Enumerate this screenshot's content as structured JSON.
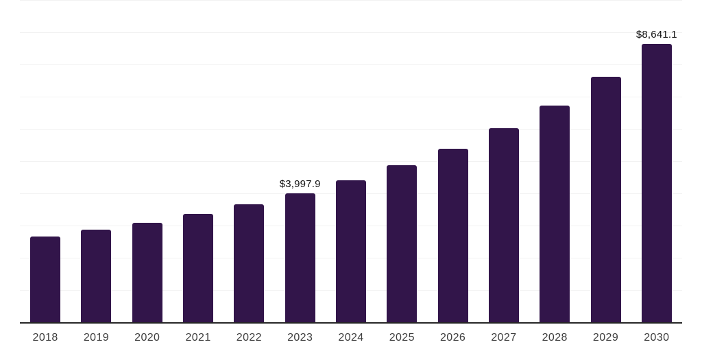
{
  "chart": {
    "background_color": "#ffffff",
    "bar_color": "#32154a",
    "gridline_color": "#f2f2f2",
    "axis_line_color": "#262626",
    "tick_label_color": "#3d3d3d",
    "data_label_color": "#111111"
  },
  "chart_data": {
    "type": "bar",
    "title": "",
    "xlabel": "",
    "ylabel": "",
    "categories": [
      "2018",
      "2019",
      "2020",
      "2021",
      "2022",
      "2023",
      "2024",
      "2025",
      "2026",
      "2027",
      "2028",
      "2029",
      "2030"
    ],
    "values": [
      2660,
      2875,
      3085,
      3360,
      3660,
      3997.9,
      4405,
      4875,
      5385,
      6020,
      6725,
      7620,
      8641.1
    ],
    "ylim": [
      0,
      10000
    ],
    "gridline_step": 1000,
    "grid": true,
    "legend": false,
    "y_axis_ticks_visible": false,
    "data_labels": [
      {
        "category": "2023",
        "text": "$3,997.9"
      },
      {
        "category": "2030",
        "text": "$8,641.1"
      }
    ]
  }
}
